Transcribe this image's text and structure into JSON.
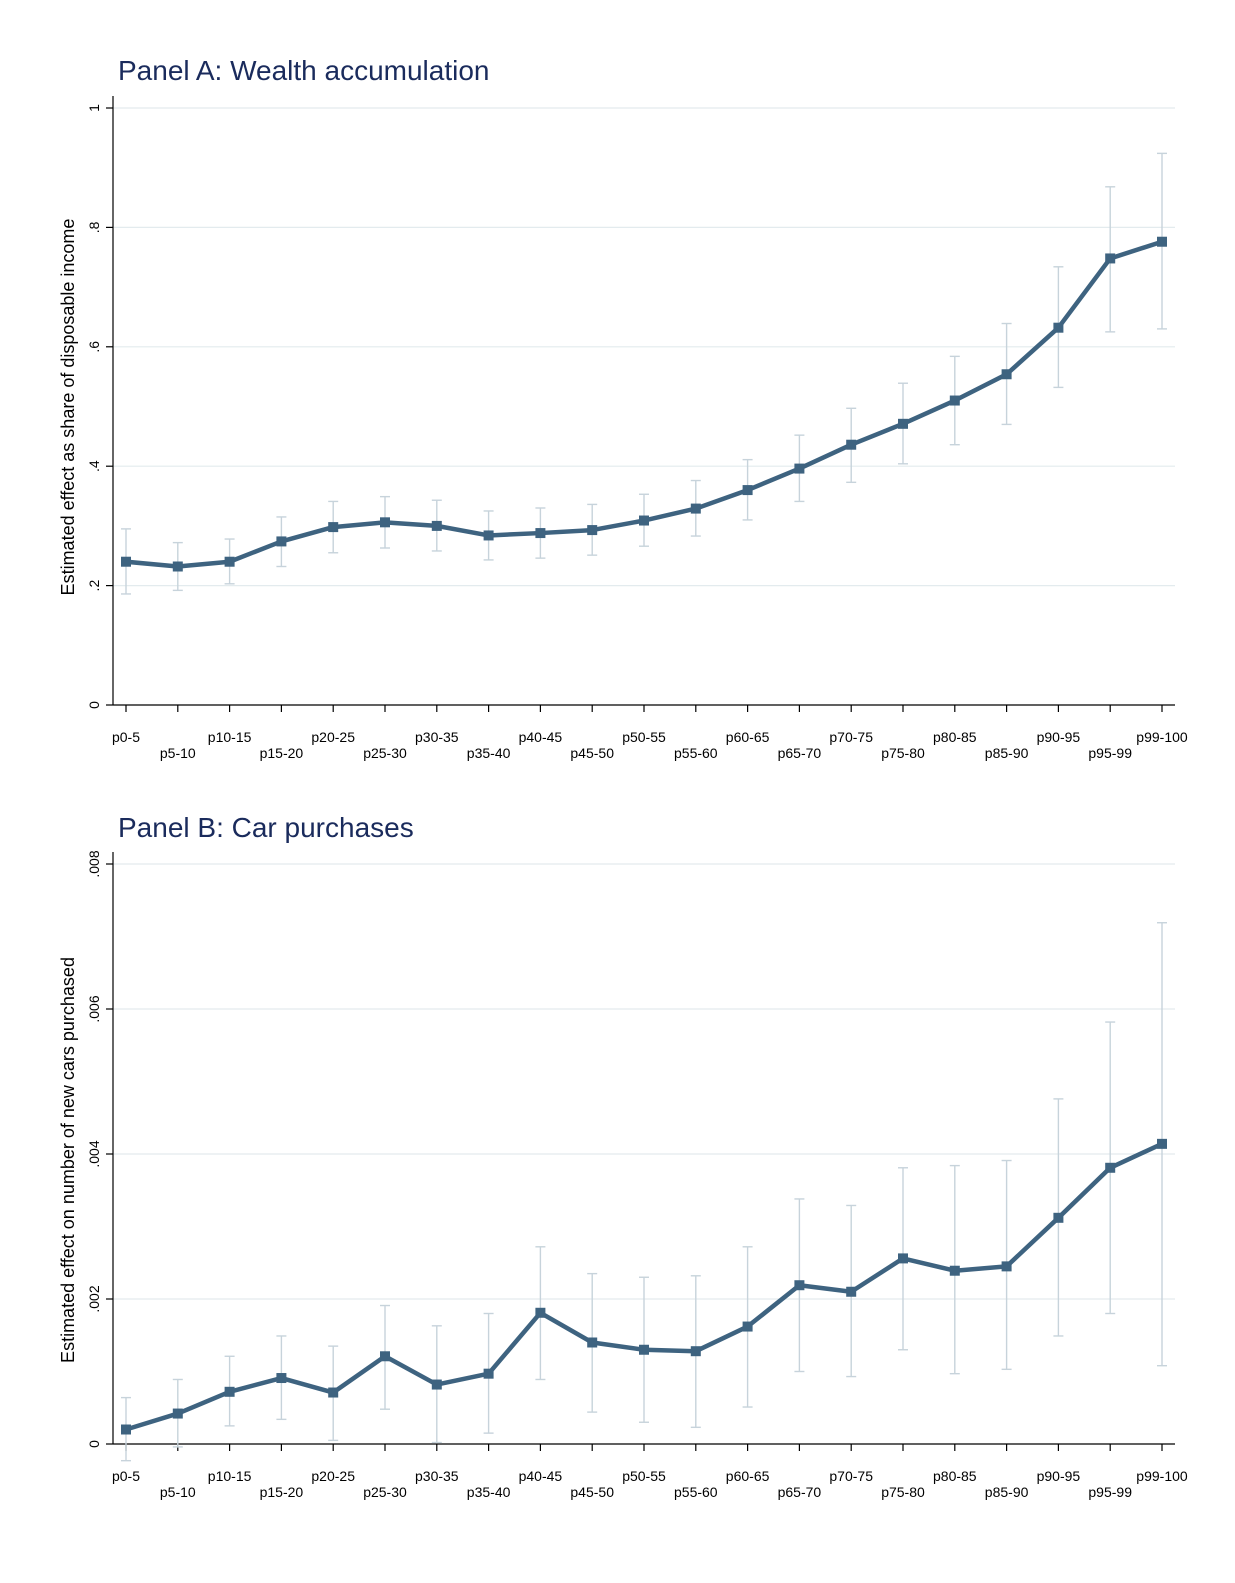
{
  "colors": {
    "line": "#3e6380",
    "ci": "#c7d3db",
    "grid": "#e3ebee",
    "title": "#1a2b5c",
    "axis": "#000000"
  },
  "chart_data": [
    {
      "type": "line",
      "title": "Panel A: Wealth accumulation",
      "xlabel": "",
      "ylabel": "Estimated effect as share of disposable income",
      "ylim": [
        0,
        1
      ],
      "yticks": [
        0,
        0.2,
        0.4,
        0.6,
        0.8,
        1
      ],
      "ytick_labels": [
        "0",
        ".2",
        ".4",
        ".6",
        ".8",
        "1"
      ],
      "grid": true,
      "categories": [
        "p0-5",
        "p5-10",
        "p10-15",
        "p15-20",
        "p20-25",
        "p25-30",
        "p30-35",
        "p35-40",
        "p40-45",
        "p45-50",
        "p50-55",
        "p55-60",
        "p60-65",
        "p65-70",
        "p70-75",
        "p75-80",
        "p80-85",
        "p85-90",
        "p90-95",
        "p95-99",
        "p99-100"
      ],
      "series": [
        {
          "values": [
            0.24,
            0.232,
            0.24,
            0.274,
            0.298,
            0.306,
            0.3,
            0.284,
            0.288,
            0.293,
            0.309,
            0.329,
            0.36,
            0.396,
            0.436,
            0.471,
            0.51,
            0.554,
            0.632,
            0.748,
            0.776
          ],
          "ci_low": [
            0.186,
            0.192,
            0.203,
            0.232,
            0.255,
            0.263,
            0.258,
            0.243,
            0.246,
            0.251,
            0.266,
            0.283,
            0.31,
            0.341,
            0.373,
            0.404,
            0.436,
            0.47,
            0.532,
            0.625,
            0.63
          ],
          "ci_high": [
            0.295,
            0.272,
            0.278,
            0.315,
            0.341,
            0.349,
            0.343,
            0.325,
            0.33,
            0.336,
            0.353,
            0.376,
            0.411,
            0.452,
            0.497,
            0.539,
            0.584,
            0.639,
            0.734,
            0.868,
            0.924
          ]
        }
      ]
    },
    {
      "type": "line",
      "title": "Panel B: Car purchases",
      "xlabel": "",
      "ylabel": "Estimated effect on number of new cars purchased",
      "ylim": [
        0,
        0.008
      ],
      "yticks": [
        0,
        0.002,
        0.004,
        0.006,
        0.008
      ],
      "ytick_labels": [
        "0",
        ".002",
        ".004",
        ".006",
        ".008"
      ],
      "grid": true,
      "categories": [
        "p0-5",
        "p5-10",
        "p10-15",
        "p15-20",
        "p20-25",
        "p25-30",
        "p30-35",
        "p35-40",
        "p40-45",
        "p45-50",
        "p50-55",
        "p55-60",
        "p60-65",
        "p65-70",
        "p70-75",
        "p75-80",
        "p80-85",
        "p85-90",
        "p90-95",
        "p95-99",
        "p99-100"
      ],
      "series": [
        {
          "values": [
            0.0002,
            0.00042,
            0.00072,
            0.00091,
            0.00071,
            0.00121,
            0.00082,
            0.00097,
            0.00181,
            0.0014,
            0.0013,
            0.00128,
            0.00162,
            0.00219,
            0.0021,
            0.00256,
            0.00239,
            0.00245,
            0.00312,
            0.00381,
            0.00414
          ],
          "ci_low": [
            -0.00023,
            -4e-05,
            0.00025,
            0.00034,
            5e-05,
            0.00048,
            2e-05,
            0.00015,
            0.00089,
            0.00044,
            0.0003,
            0.00023,
            0.00051,
            0.001,
            0.00093,
            0.0013,
            0.00097,
            0.00103,
            0.00149,
            0.0018,
            0.00108
          ],
          "ci_high": [
            0.00064,
            0.00089,
            0.00121,
            0.00149,
            0.00135,
            0.00191,
            0.00163,
            0.0018,
            0.00272,
            0.00235,
            0.0023,
            0.00232,
            0.00272,
            0.00338,
            0.00329,
            0.00381,
            0.00384,
            0.00391,
            0.00476,
            0.00582,
            0.00719
          ]
        }
      ]
    }
  ]
}
